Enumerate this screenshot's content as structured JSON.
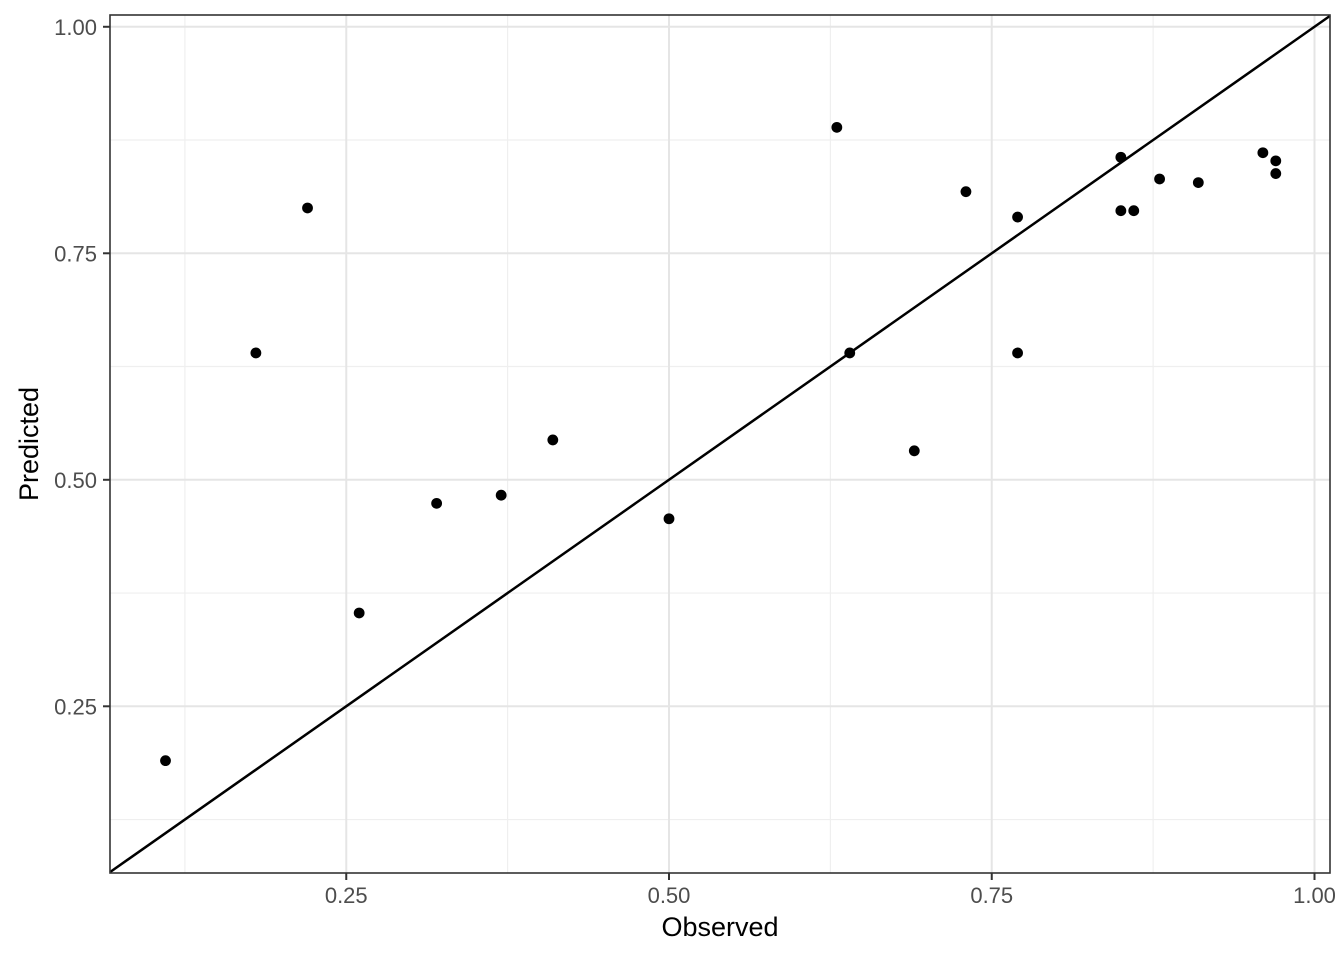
{
  "figure": {
    "background": "#ffffff"
  },
  "chart_data": {
    "type": "scatter",
    "title": "",
    "xlabel": "Observed",
    "ylabel": "Predicted",
    "xlim": [
      0.067,
      1.012
    ],
    "ylim": [
      0.066,
      1.013
    ],
    "x_major_ticks": [
      0.25,
      0.5,
      0.75,
      1.0
    ],
    "x_tick_labels": [
      "0.25",
      "0.50",
      "0.75",
      "1.00"
    ],
    "y_major_ticks": [
      0.25,
      0.5,
      0.75,
      1.0
    ],
    "y_tick_labels": [
      "0.25",
      "0.50",
      "0.75",
      "1.00"
    ],
    "x_minor_ticks": [
      0.125,
      0.375,
      0.625,
      0.875
    ],
    "y_minor_ticks": [
      0.125,
      0.375,
      0.625,
      0.875
    ],
    "grid": true,
    "legend": "none",
    "reference_line": {
      "type": "identity",
      "equation": "y = x"
    },
    "points": [
      {
        "observed": 0.11,
        "predicted": 0.19
      },
      {
        "observed": 0.18,
        "predicted": 0.64
      },
      {
        "observed": 0.22,
        "predicted": 0.8
      },
      {
        "observed": 0.26,
        "predicted": 0.353
      },
      {
        "observed": 0.32,
        "predicted": 0.474
      },
      {
        "observed": 0.37,
        "predicted": 0.483
      },
      {
        "observed": 0.41,
        "predicted": 0.544
      },
      {
        "observed": 0.5,
        "predicted": 0.457
      },
      {
        "observed": 0.63,
        "predicted": 0.889
      },
      {
        "observed": 0.64,
        "predicted": 0.64
      },
      {
        "observed": 0.69,
        "predicted": 0.532
      },
      {
        "observed": 0.73,
        "predicted": 0.818
      },
      {
        "observed": 0.77,
        "predicted": 0.79
      },
      {
        "observed": 0.77,
        "predicted": 0.64
      },
      {
        "observed": 0.85,
        "predicted": 0.856
      },
      {
        "observed": 0.85,
        "predicted": 0.797
      },
      {
        "observed": 0.86,
        "predicted": 0.797
      },
      {
        "observed": 0.88,
        "predicted": 0.832
      },
      {
        "observed": 0.91,
        "predicted": 0.828
      },
      {
        "observed": 0.96,
        "predicted": 0.861
      },
      {
        "observed": 0.97,
        "predicted": 0.852
      },
      {
        "observed": 0.97,
        "predicted": 0.838
      }
    ],
    "colors": {
      "point": "#000000",
      "reference_line": "#000000",
      "panel_background": "#ffffff",
      "panel_border": "#333333",
      "grid_major": "#e5e5e5",
      "grid_minor": "#efefef",
      "tick_mark": "#333333",
      "tick_label": "#4d4d4d",
      "axis_title": "#000000"
    }
  }
}
